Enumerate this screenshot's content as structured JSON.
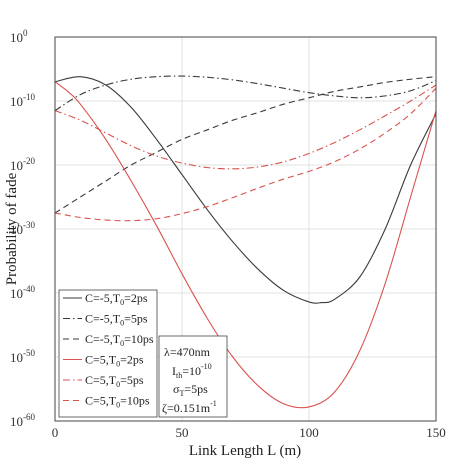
{
  "chart_data": {
    "type": "line",
    "xlabel": "Link Length L (m)",
    "ylabel": "Probability of fade",
    "xlim": [
      0,
      150
    ],
    "ylim_log10": [
      -60,
      0
    ],
    "y_scale": "log",
    "grid": true,
    "x_ticks": [
      "0",
      "50",
      "100",
      "150"
    ],
    "y_ticks": [
      {
        "base": "10",
        "exp": "0",
        "log": 0
      },
      {
        "base": "10",
        "exp": "-10",
        "log": -10
      },
      {
        "base": "10",
        "exp": "-20",
        "log": -20
      },
      {
        "base": "10",
        "exp": "-30",
        "log": -30
      },
      {
        "base": "10",
        "exp": "-40",
        "log": -40
      },
      {
        "base": "10",
        "exp": "-50",
        "log": -50
      },
      {
        "base": "10",
        "exp": "-60",
        "log": -60
      }
    ],
    "legend_position": "bottom-left",
    "series": [
      {
        "name_main": "C=-5,T",
        "name_sub": "0",
        "name_tail": "=2ps",
        "color": "#3a3a3a",
        "dash": "solid",
        "x": [
          0,
          10,
          20,
          30,
          40,
          50,
          60,
          70,
          80,
          90,
          100,
          105,
          110,
          120,
          130,
          140,
          150
        ],
        "y_log10": [
          -7,
          -6.2,
          -7.5,
          -11,
          -16,
          -21.5,
          -27,
          -32,
          -36.3,
          -39.6,
          -41.4,
          -41.5,
          -41,
          -37.5,
          -30,
          -20,
          -12
        ]
      },
      {
        "name_main": "C=-5,T",
        "name_sub": "0",
        "name_tail": "=5ps",
        "color": "#3a3a3a",
        "dash": "dashdot",
        "x": [
          0,
          10,
          20,
          30,
          40,
          50,
          60,
          70,
          80,
          90,
          100,
          110,
          120,
          130,
          140,
          150
        ],
        "y_log10": [
          -11.5,
          -9,
          -7.5,
          -6.6,
          -6.2,
          -6.1,
          -6.3,
          -6.7,
          -7.3,
          -8,
          -8.7,
          -9.2,
          -9.5,
          -9.2,
          -8.4,
          -6.8
        ]
      },
      {
        "name_main": "C=-5,T",
        "name_sub": "0",
        "name_tail": "=10ps",
        "color": "#3a3a3a",
        "dash": "dashed",
        "x": [
          0,
          10,
          20,
          30,
          40,
          50,
          60,
          70,
          80,
          90,
          100,
          110,
          120,
          130,
          140,
          150
        ],
        "y_log10": [
          -27.5,
          -25,
          -22.5,
          -20,
          -18,
          -16,
          -14.5,
          -13,
          -11.8,
          -10.5,
          -9.5,
          -8.5,
          -7.8,
          -7.1,
          -6.6,
          -6.2
        ]
      },
      {
        "name_main": "C=5,T",
        "name_sub": "0",
        "name_tail": "=2ps",
        "color": "#d9534f",
        "dash": "solid",
        "x": [
          0,
          5,
          10,
          20,
          30,
          40,
          50,
          60,
          70,
          80,
          90,
          100,
          110,
          120,
          130,
          140,
          150
        ],
        "y_log10": [
          -7,
          -8.5,
          -10.5,
          -16,
          -22.5,
          -29.5,
          -37,
          -44,
          -50,
          -54.5,
          -57.3,
          -57.8,
          -55.5,
          -49,
          -38.5,
          -25,
          -11.5
        ]
      },
      {
        "name_main": "C=5,T",
        "name_sub": "0",
        "name_tail": "=5ps",
        "color": "#d9534f",
        "dash": "dashdot",
        "x": [
          0,
          10,
          20,
          30,
          40,
          50,
          60,
          70,
          80,
          90,
          100,
          110,
          120,
          130,
          140,
          150
        ],
        "y_log10": [
          -11.5,
          -13,
          -15,
          -17,
          -18.6,
          -19.7,
          -20.4,
          -20.6,
          -20.3,
          -19.5,
          -18.2,
          -16.5,
          -14.5,
          -12.3,
          -10,
          -7.5
        ]
      },
      {
        "name_main": "C=5,T",
        "name_sub": "0",
        "name_tail": "=10ps",
        "color": "#d9534f",
        "dash": "dashed",
        "x": [
          0,
          10,
          20,
          30,
          40,
          50,
          60,
          70,
          80,
          90,
          100,
          110,
          120,
          130,
          140,
          150
        ],
        "y_log10": [
          -27.5,
          -28.2,
          -28.6,
          -28.7,
          -28.4,
          -27.6,
          -26.5,
          -25.1,
          -23.6,
          -22.2,
          -21,
          -19.5,
          -17.5,
          -15,
          -12,
          -8
        ]
      }
    ],
    "annotation": {
      "line1_prefix": "λ=470nm",
      "line2_main": "I",
      "line2_sub": "th",
      "line2_mid": "=10",
      "line2_sup": "-10",
      "line3_main": "σ",
      "line3_sub": "T",
      "line3_mid": "=5ps",
      "line4_main": "ζ=0.151m",
      "line4_sup": "-1"
    }
  }
}
